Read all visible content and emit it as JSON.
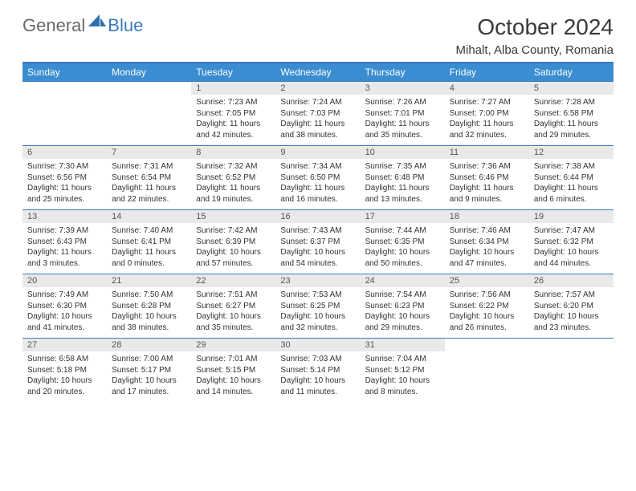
{
  "brand": {
    "general": "General",
    "blue": "Blue"
  },
  "title": "October 2024",
  "subtitle": "Mihalt, Alba County, Romania",
  "colors": {
    "header_bg": "#3a8dd0",
    "header_text": "#ffffff",
    "rule": "#3a7bbf",
    "daynum_bg": "#e9e9e9",
    "logo_gray": "#6a6a6a",
    "logo_blue": "#3a7bbf"
  },
  "weekdays": [
    "Sunday",
    "Monday",
    "Tuesday",
    "Wednesday",
    "Thursday",
    "Friday",
    "Saturday"
  ],
  "first_weekday_index": 2,
  "days": [
    {
      "n": 1,
      "sunrise": "7:23 AM",
      "sunset": "7:05 PM",
      "daylight": "11 hours and 42 minutes."
    },
    {
      "n": 2,
      "sunrise": "7:24 AM",
      "sunset": "7:03 PM",
      "daylight": "11 hours and 38 minutes."
    },
    {
      "n": 3,
      "sunrise": "7:26 AM",
      "sunset": "7:01 PM",
      "daylight": "11 hours and 35 minutes."
    },
    {
      "n": 4,
      "sunrise": "7:27 AM",
      "sunset": "7:00 PM",
      "daylight": "11 hours and 32 minutes."
    },
    {
      "n": 5,
      "sunrise": "7:28 AM",
      "sunset": "6:58 PM",
      "daylight": "11 hours and 29 minutes."
    },
    {
      "n": 6,
      "sunrise": "7:30 AM",
      "sunset": "6:56 PM",
      "daylight": "11 hours and 25 minutes."
    },
    {
      "n": 7,
      "sunrise": "7:31 AM",
      "sunset": "6:54 PM",
      "daylight": "11 hours and 22 minutes."
    },
    {
      "n": 8,
      "sunrise": "7:32 AM",
      "sunset": "6:52 PM",
      "daylight": "11 hours and 19 minutes."
    },
    {
      "n": 9,
      "sunrise": "7:34 AM",
      "sunset": "6:50 PM",
      "daylight": "11 hours and 16 minutes."
    },
    {
      "n": 10,
      "sunrise": "7:35 AM",
      "sunset": "6:48 PM",
      "daylight": "11 hours and 13 minutes."
    },
    {
      "n": 11,
      "sunrise": "7:36 AM",
      "sunset": "6:46 PM",
      "daylight": "11 hours and 9 minutes."
    },
    {
      "n": 12,
      "sunrise": "7:38 AM",
      "sunset": "6:44 PM",
      "daylight": "11 hours and 6 minutes."
    },
    {
      "n": 13,
      "sunrise": "7:39 AM",
      "sunset": "6:43 PM",
      "daylight": "11 hours and 3 minutes."
    },
    {
      "n": 14,
      "sunrise": "7:40 AM",
      "sunset": "6:41 PM",
      "daylight": "11 hours and 0 minutes."
    },
    {
      "n": 15,
      "sunrise": "7:42 AM",
      "sunset": "6:39 PM",
      "daylight": "10 hours and 57 minutes."
    },
    {
      "n": 16,
      "sunrise": "7:43 AM",
      "sunset": "6:37 PM",
      "daylight": "10 hours and 54 minutes."
    },
    {
      "n": 17,
      "sunrise": "7:44 AM",
      "sunset": "6:35 PM",
      "daylight": "10 hours and 50 minutes."
    },
    {
      "n": 18,
      "sunrise": "7:46 AM",
      "sunset": "6:34 PM",
      "daylight": "10 hours and 47 minutes."
    },
    {
      "n": 19,
      "sunrise": "7:47 AM",
      "sunset": "6:32 PM",
      "daylight": "10 hours and 44 minutes."
    },
    {
      "n": 20,
      "sunrise": "7:49 AM",
      "sunset": "6:30 PM",
      "daylight": "10 hours and 41 minutes."
    },
    {
      "n": 21,
      "sunrise": "7:50 AM",
      "sunset": "6:28 PM",
      "daylight": "10 hours and 38 minutes."
    },
    {
      "n": 22,
      "sunrise": "7:51 AM",
      "sunset": "6:27 PM",
      "daylight": "10 hours and 35 minutes."
    },
    {
      "n": 23,
      "sunrise": "7:53 AM",
      "sunset": "6:25 PM",
      "daylight": "10 hours and 32 minutes."
    },
    {
      "n": 24,
      "sunrise": "7:54 AM",
      "sunset": "6:23 PM",
      "daylight": "10 hours and 29 minutes."
    },
    {
      "n": 25,
      "sunrise": "7:56 AM",
      "sunset": "6:22 PM",
      "daylight": "10 hours and 26 minutes."
    },
    {
      "n": 26,
      "sunrise": "7:57 AM",
      "sunset": "6:20 PM",
      "daylight": "10 hours and 23 minutes."
    },
    {
      "n": 27,
      "sunrise": "6:58 AM",
      "sunset": "5:18 PM",
      "daylight": "10 hours and 20 minutes."
    },
    {
      "n": 28,
      "sunrise": "7:00 AM",
      "sunset": "5:17 PM",
      "daylight": "10 hours and 17 minutes."
    },
    {
      "n": 29,
      "sunrise": "7:01 AM",
      "sunset": "5:15 PM",
      "daylight": "10 hours and 14 minutes."
    },
    {
      "n": 30,
      "sunrise": "7:03 AM",
      "sunset": "5:14 PM",
      "daylight": "10 hours and 11 minutes."
    },
    {
      "n": 31,
      "sunrise": "7:04 AM",
      "sunset": "5:12 PM",
      "daylight": "10 hours and 8 minutes."
    }
  ]
}
